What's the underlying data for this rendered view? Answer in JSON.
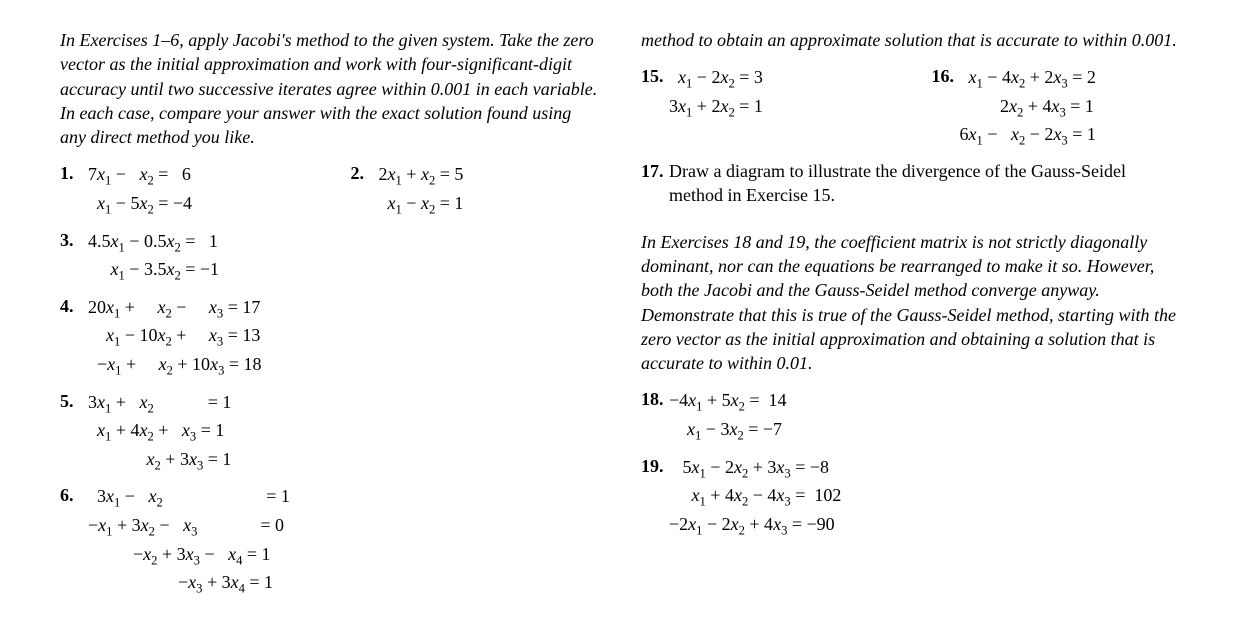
{
  "left": {
    "instruction": "In Exercises 1–6, apply Jacobi's method to the given system. Take the zero vector as the initial approximation and work with four-significant-digit accuracy until two successive iterates agree within 0.001 in each variable. In each case, compare your answer with the exact solution found using any direct method you like.",
    "p1": {
      "num": "1.",
      "l1": "7x₁ −   x₂ =   6",
      "l2": "  x₁ − 5x₂ = −4"
    },
    "p2": {
      "num": "2.",
      "l1": "2x₁ + x₂ = 5",
      "l2": "  x₁ − x₂ = 1"
    },
    "p3": {
      "num": "3.",
      "l1": "4.5x₁ − 0.5x₂ =   1",
      "l2": "     x₁ − 3.5x₂ = −1"
    },
    "p4": {
      "num": "4.",
      "l1": "20x₁ +     x₂ −     x₃ = 17",
      "l2": "    x₁ − 10x₂ +     x₃ = 13",
      "l3": "  −x₁ +     x₂ + 10x₃ = 18"
    },
    "p5": {
      "num": "5.",
      "l1": "3x₁ +   x₂            = 1",
      "l2": "  x₁ + 4x₂ +   x₃ = 1",
      "l3": "             x₂ + 3x₃ = 1"
    },
    "p6": {
      "num": "6.",
      "l1": "  3x₁ −   x₂                       = 1",
      "l2": " −x₁ + 3x₂ −   x₃              = 0",
      "l3": "          −x₂ + 3x₃ −   x₄ = 1",
      "l4": "                    −x₃ + 3x₄ = 1"
    }
  },
  "right": {
    "cont": "method to obtain an approximate solution that is accurate to within 0.001.",
    "p15": {
      "num": "15.",
      "l1": "  x₁ − 2x₂ = 3",
      "l2": "3x₁ + 2x₂ = 1"
    },
    "p16": {
      "num": "16.",
      "l1": "  x₁ − 4x₂ + 2x₃ = 2",
      "l2": "         2x₂ + 4x₃ = 1",
      "l3": "6x₁ −   x₂ − 2x₃ = 1"
    },
    "p17": {
      "num": "17.",
      "text": "Draw a diagram to illustrate the divergence of the Gauss-Seidel method in Exercise 15."
    },
    "instruction2": "In Exercises 18 and 19, the coefficient matrix is not strictly diagonally dominant, nor can the equations be rearranged to make it so. However, both the Jacobi and the Gauss-Seidel method converge anyway. Demonstrate that this is true of the Gauss-Seidel method, starting with the zero vector as the initial approximation and obtaining a solution that is accurate to within 0.01.",
    "p18": {
      "num": "18.",
      "l1": "−4x₁ + 5x₂ =  14",
      "l2": "    x₁ − 3x₂ = −7"
    },
    "p19": {
      "num": "19.",
      "l1": "   5x₁ − 2x₂ + 3x₃ = −8",
      "l2": "     x₁ + 4x₂ − 4x₃ =  102",
      "l3": "−2x₁ − 2x₂ + 4x₃ = −90"
    }
  }
}
